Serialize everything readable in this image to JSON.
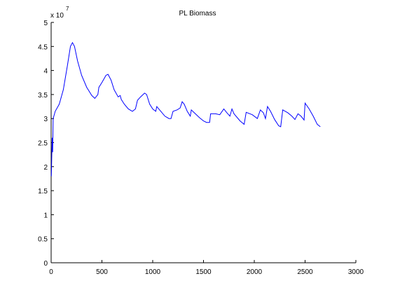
{
  "chart_data": {
    "type": "line",
    "title": "PL  Biomass",
    "y_multiplier": {
      "base": "x 10",
      "exponent": "7"
    },
    "x": [
      2,
      10,
      15,
      20,
      40,
      80,
      120,
      160,
      190,
      210,
      230,
      260,
      300,
      350,
      400,
      430,
      460,
      470,
      500,
      540,
      560,
      590,
      620,
      660,
      680,
      690,
      720,
      760,
      800,
      830,
      850,
      880,
      920,
      940,
      970,
      1000,
      1030,
      1040,
      1080,
      1120,
      1160,
      1180,
      1200,
      1240,
      1270,
      1290,
      1310,
      1340,
      1370,
      1380,
      1420,
      1460,
      1500,
      1530,
      1560,
      1570,
      1620,
      1660,
      1700,
      1730,
      1760,
      1780,
      1800,
      1860,
      1900,
      1920,
      1980,
      2030,
      2060,
      2090,
      2110,
      2130,
      2160,
      2200,
      2240,
      2260,
      2280,
      2330,
      2370,
      2400,
      2430,
      2460,
      2490,
      2500,
      2540,
      2580,
      2620,
      2650
    ],
    "series": [
      {
        "color": "#0000ff",
        "values": [
          1.8,
          2.6,
          2.3,
          3.0,
          3.15,
          3.3,
          3.6,
          4.1,
          4.5,
          4.58,
          4.5,
          4.2,
          3.9,
          3.65,
          3.48,
          3.42,
          3.5,
          3.65,
          3.75,
          3.9,
          3.92,
          3.8,
          3.6,
          3.45,
          3.48,
          3.4,
          3.3,
          3.2,
          3.15,
          3.2,
          3.38,
          3.45,
          3.53,
          3.5,
          3.3,
          3.2,
          3.15,
          3.25,
          3.15,
          3.05,
          3.0,
          3.0,
          3.15,
          3.18,
          3.22,
          3.35,
          3.3,
          3.15,
          3.05,
          3.18,
          3.1,
          3.02,
          2.95,
          2.92,
          2.92,
          3.1,
          3.1,
          3.08,
          3.2,
          3.12,
          3.05,
          3.2,
          3.1,
          2.95,
          2.88,
          3.13,
          3.08,
          3.0,
          3.18,
          3.12,
          3.0,
          3.25,
          3.15,
          2.98,
          2.85,
          2.83,
          3.18,
          3.12,
          3.05,
          2.98,
          3.1,
          3.05,
          2.97,
          3.32,
          3.2,
          3.05,
          2.88,
          2.83
        ]
      }
    ],
    "xlim": [
      0,
      3000
    ],
    "xticks": [
      0,
      500,
      1000,
      1500,
      2000,
      2500,
      3000
    ],
    "ylim": [
      0,
      5
    ],
    "yticks": [
      0,
      0.5,
      1,
      1.5,
      2,
      2.5,
      3,
      3.5,
      4,
      4.5,
      5
    ],
    "grid": false
  }
}
